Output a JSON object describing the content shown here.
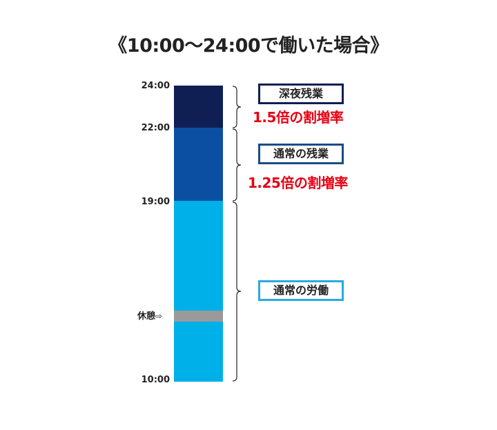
{
  "title": "《10:00〜24:00で働いた場合》",
  "timeline": {
    "ticks": [
      "24:00",
      "22:00",
      "19:00",
      "10:00"
    ],
    "break_label": "休憩",
    "break_arrow": "⇨"
  },
  "segments": [
    {
      "name": "深夜残業",
      "from": "22:00",
      "to": "24:00",
      "color": "#0f1f54",
      "rate": "1.5倍の割増率",
      "border_color": "#0f1f54"
    },
    {
      "name": "通常の残業",
      "from": "19:00",
      "to": "22:00",
      "color": "#0b4fa2",
      "rate": "1.25倍の割増率",
      "border_color": "#1a4a8a"
    },
    {
      "name": "通常の労働",
      "from": "10:00",
      "to": "19:00",
      "color": "#00b0e8",
      "rate": "",
      "border_color": "#29a9e0"
    }
  ],
  "break_color": "#9a9a9a",
  "rate_color": "#e60012"
}
